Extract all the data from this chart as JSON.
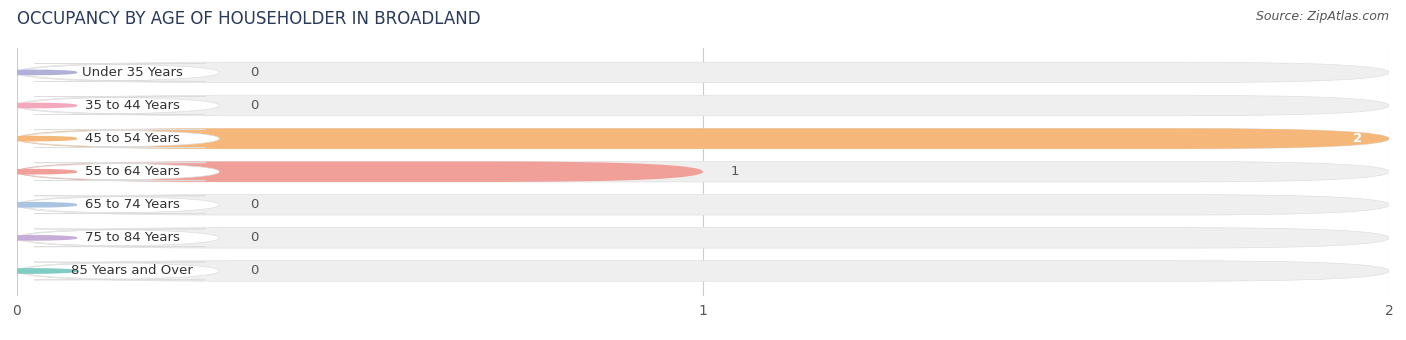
{
  "title": "OCCUPANCY BY AGE OF HOUSEHOLDER IN BROADLAND",
  "source": "Source: ZipAtlas.com",
  "categories": [
    "Under 35 Years",
    "35 to 44 Years",
    "45 to 54 Years",
    "55 to 64 Years",
    "65 to 74 Years",
    "75 to 84 Years",
    "85 Years and Over"
  ],
  "values": [
    0,
    0,
    2,
    1,
    0,
    0,
    0
  ],
  "bar_colors": [
    "#b0b0d8",
    "#f4a8bc",
    "#f5b87a",
    "#f0a098",
    "#a8c4e0",
    "#c8acd8",
    "#80ccc4"
  ],
  "xlim_max": 2,
  "xticks": [
    0,
    1,
    2
  ],
  "title_fontsize": 12,
  "source_fontsize": 9,
  "label_fontsize": 9.5,
  "tick_fontsize": 10,
  "fig_width": 14.06,
  "fig_height": 3.4
}
